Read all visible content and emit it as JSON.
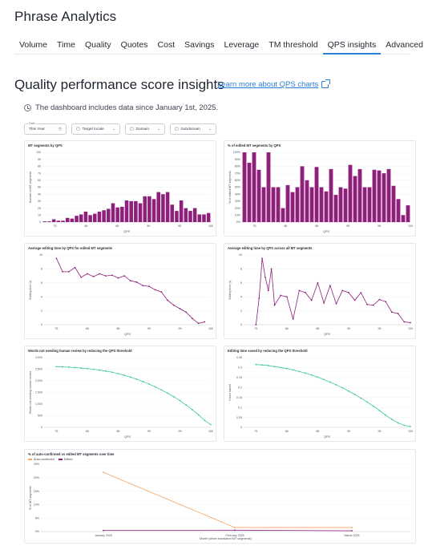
{
  "app": {
    "title": "Phrase Analytics"
  },
  "tabs": [
    {
      "label": "Volume",
      "active": false
    },
    {
      "label": "Time",
      "active": false
    },
    {
      "label": "Quality",
      "active": false
    },
    {
      "label": "Quotes",
      "active": false
    },
    {
      "label": "Cost",
      "active": false
    },
    {
      "label": "Savings",
      "active": false
    },
    {
      "label": "Leverage",
      "active": false
    },
    {
      "label": "TM threshold",
      "active": false
    },
    {
      "label": "QPS insights",
      "active": true
    },
    {
      "label": "Advanced",
      "active": false
    }
  ],
  "section": {
    "title": "Quality performance score insights",
    "learn_link": "Learn more about QPS charts",
    "info": "The dashboard includes data since January 1st, 2025."
  },
  "filters": {
    "date_label": "Date",
    "date_value": "This Year",
    "target_locale": "Target locale",
    "domain": "Domain",
    "subdomain": "Subdomain"
  },
  "colors": {
    "purple": "#8e1f7a",
    "teal": "#3ec7a0",
    "orange": "#f6a35c",
    "accent": "#2a7fd4"
  },
  "chart_data": [
    {
      "type": "bar",
      "title": "MT segments by QPS",
      "xlabel": "QPS",
      "ylabel": "Number of MT segments",
      "x_ticks": [
        "75",
        "80",
        "85",
        "90",
        "95",
        "100"
      ],
      "y_ticks": [
        "0",
        "10",
        "20",
        "30",
        "40",
        "50",
        "60",
        "70",
        "80",
        "90",
        "100"
      ],
      "ylim": [
        0,
        100
      ],
      "values": [
        1,
        1,
        4,
        2,
        2,
        6,
        5,
        9,
        11,
        15,
        10,
        12,
        15,
        17,
        19,
        27,
        21,
        22,
        31,
        30,
        30,
        27,
        37,
        37,
        33,
        43,
        40,
        43,
        25,
        16,
        31,
        20,
        16,
        20,
        11,
        11,
        13
      ]
    },
    {
      "type": "bar",
      "title": "% of edited MT segments by QPS",
      "xlabel": "QPS",
      "ylabel": "% of edited MT segments",
      "x_ticks": [
        "75",
        "80",
        "85",
        "90",
        "95",
        "100"
      ],
      "y_ticks": [
        "0%",
        "10%",
        "20%",
        "30%",
        "40%",
        "50%",
        "60%",
        "70%",
        "80%",
        "90%",
        "100%"
      ],
      "ylim": [
        0,
        100
      ],
      "values": [
        100,
        85,
        100,
        75,
        50,
        100,
        50,
        50,
        20,
        53,
        43,
        50,
        80,
        60,
        50,
        79,
        50,
        44,
        76,
        39,
        50,
        48,
        82,
        66,
        76,
        50,
        50,
        75,
        74,
        70,
        76,
        52,
        33,
        10,
        24
      ]
    },
    {
      "type": "line",
      "title": "Average editing time by QPS for edited MT segments",
      "xlabel": "QPS",
      "ylabel": "Editing time (s)",
      "x_ticks": [
        "75",
        "80",
        "85",
        "90",
        "95",
        "100"
      ],
      "y_ticks": [
        "0",
        "2",
        "4",
        "6",
        "8",
        "10"
      ],
      "xlim": [
        73,
        100
      ],
      "ylim": [
        0,
        10
      ],
      "x": [
        75,
        76,
        77,
        78,
        79,
        80,
        81,
        82,
        83,
        84,
        85,
        86,
        87,
        88,
        89,
        90,
        91,
        92,
        93,
        94,
        95,
        96,
        97,
        98,
        99
      ],
      "y": [
        9.5,
        7.6,
        7.6,
        8.2,
        6.8,
        7.3,
        6.9,
        7.3,
        7.0,
        7.1,
        6.7,
        7.0,
        6.3,
        6.1,
        5.6,
        5.5,
        5.0,
        4.7,
        3.5,
        2.8,
        2.3,
        1.8,
        0.9,
        0.2,
        0.4
      ]
    },
    {
      "type": "line",
      "title": "Average editing time by QPS across all MT segments",
      "xlabel": "QPS",
      "ylabel": "Editing time (s)",
      "x_ticks": [
        "75",
        "80",
        "85",
        "90",
        "95",
        "100"
      ],
      "y_ticks": [
        "0",
        "2",
        "4",
        "6",
        "8",
        "10"
      ],
      "xlim": [
        73,
        100
      ],
      "ylim": [
        0,
        10
      ],
      "x": [
        75,
        75.5,
        76,
        76.5,
        77,
        77.5,
        78,
        79,
        80,
        81,
        82,
        83,
        84,
        85,
        86,
        87,
        88,
        89,
        90,
        91,
        92,
        93,
        94,
        95,
        96,
        97,
        98,
        99,
        100
      ],
      "y": [
        0.0,
        3.8,
        9.5,
        6.8,
        4.9,
        8.0,
        2.8,
        4.2,
        4.0,
        0.8,
        4.9,
        4.6,
        3.5,
        6.0,
        3.1,
        5.6,
        3.0,
        4.9,
        4.6,
        3.5,
        4.6,
        2.9,
        2.8,
        3.6,
        3.3,
        1.8,
        1.6,
        0.4,
        0.3
      ]
    },
    {
      "type": "line",
      "title": "Words not needing human review by reducing the QPS threshold",
      "xlabel": "QPS",
      "ylabel": "Words not needing human review",
      "x_ticks": [
        "75",
        "80",
        "85",
        "90",
        "95",
        "100"
      ],
      "y_ticks": [
        "0",
        "500",
        "1,000",
        "1,500",
        "2,000",
        "2,500",
        "3,000"
      ],
      "xlim": [
        73,
        100
      ],
      "ylim": [
        0,
        3000
      ],
      "x": [
        75,
        76,
        77,
        78,
        79,
        80,
        81,
        82,
        83,
        84,
        85,
        86,
        87,
        88,
        89,
        90,
        91,
        92,
        93,
        94,
        95,
        96,
        97,
        98,
        99,
        100
      ],
      "y": [
        2610,
        2600,
        2585,
        2570,
        2550,
        2525,
        2495,
        2460,
        2420,
        2370,
        2310,
        2240,
        2160,
        2070,
        1970,
        1860,
        1740,
        1610,
        1470,
        1320,
        1150,
        960,
        760,
        540,
        300,
        120
      ]
    },
    {
      "type": "line",
      "title": "Editing time saved by reducing the QPS threshold",
      "xlabel": "QPS",
      "ylabel": "Hours saved",
      "x_ticks": [
        "75",
        "80",
        "85",
        "90",
        "95",
        "100"
      ],
      "y_ticks": [
        "0",
        "0.05",
        "0.1",
        "0.15",
        "0.2",
        "0.25",
        "0.3",
        "0.35"
      ],
      "xlim": [
        73,
        100
      ],
      "ylim": [
        0,
        0.35
      ],
      "x": [
        75,
        76,
        77,
        78,
        79,
        80,
        81,
        82,
        83,
        84,
        85,
        86,
        87,
        88,
        89,
        90,
        91,
        92,
        93,
        94,
        95,
        96,
        97,
        98,
        99,
        100
      ],
      "y": [
        0.315,
        0.313,
        0.31,
        0.305,
        0.3,
        0.295,
        0.288,
        0.28,
        0.272,
        0.262,
        0.252,
        0.24,
        0.227,
        0.213,
        0.198,
        0.182,
        0.165,
        0.146,
        0.127,
        0.106,
        0.084,
        0.061,
        0.04,
        0.022,
        0.01,
        0.004
      ]
    },
    {
      "type": "line",
      "title": "% of auto-confirmed vs edited MT segments over time",
      "xlabel": "Month (when translated MT segments)",
      "ylabel": "% of MT segments",
      "legend": [
        "Auto-confirmed",
        "Edited"
      ],
      "categories": [
        "January 2025",
        "February 2025",
        "March 2025"
      ],
      "y_ticks": [
        "0%",
        "5%",
        "10%",
        "15%",
        "20%",
        "25%"
      ],
      "ylim": [
        0,
        25
      ],
      "series": [
        {
          "name": "Auto-confirmed",
          "values": [
            22,
            1.5,
            1.5
          ]
        },
        {
          "name": "Edited",
          "values": [
            0.4,
            0.5,
            0.3
          ]
        }
      ]
    }
  ]
}
